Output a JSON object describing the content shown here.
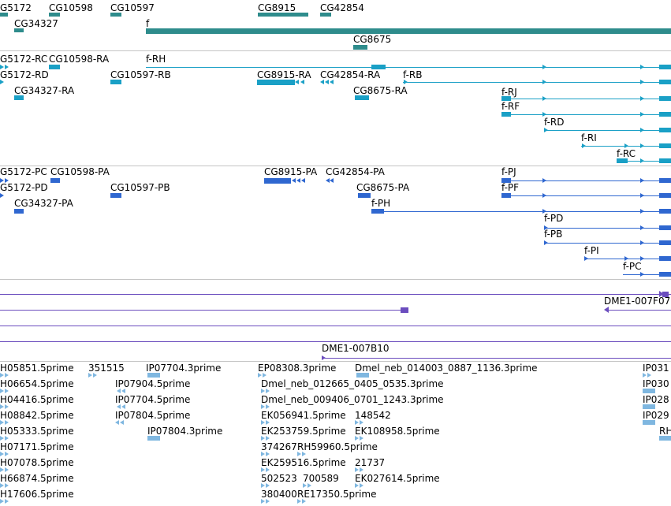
{
  "colors": {
    "gene": "#2e8c8c",
    "transcript": "#1aa0c6",
    "protein": "#2f67d0",
    "clone": "#6b4dbe",
    "insertion": "#7fb7e0",
    "separator": "#c4c4c4"
  },
  "tracks": {
    "genes": [
      {
        "label": "G5172"
      },
      {
        "label": "CG10598"
      },
      {
        "label": "CG10597"
      },
      {
        "label": "CG8915"
      },
      {
        "label": "CG42854"
      },
      {
        "label": "CG34327"
      },
      {
        "label": "f"
      },
      {
        "label": "CG8675"
      }
    ],
    "transcripts": [
      {
        "label": "G5172-RC"
      },
      {
        "label": "CG10598-RA"
      },
      {
        "label": "f-RH"
      },
      {
        "label": "G5172-RD"
      },
      {
        "label": "CG10597-RB"
      },
      {
        "label": "CG8915-RA"
      },
      {
        "label": "CG42854-RA"
      },
      {
        "label": "f-RB"
      },
      {
        "label": "CG34327-RA"
      },
      {
        "label": "CG8675-RA"
      },
      {
        "label": "f-RJ"
      },
      {
        "label": "f-RF"
      },
      {
        "label": "f-RD"
      },
      {
        "label": "f-RI"
      },
      {
        "label": "f-RC"
      }
    ],
    "proteins": [
      {
        "label": "G5172-PC"
      },
      {
        "label": "CG10598-PA"
      },
      {
        "label": "CG8915-PA"
      },
      {
        "label": "CG42854-PA"
      },
      {
        "label": "f-PJ"
      },
      {
        "label": "G5172-PD"
      },
      {
        "label": "CG10597-PB"
      },
      {
        "label": "CG8675-PA"
      },
      {
        "label": "f-PF"
      },
      {
        "label": "CG34327-PA"
      },
      {
        "label": "f-PH"
      },
      {
        "label": "f-PD"
      },
      {
        "label": "f-PB"
      },
      {
        "label": "f-PI"
      },
      {
        "label": "f-PC"
      }
    ],
    "clones": [
      {
        "label": "DME1-007F07"
      },
      {
        "label": "DME1-007B10"
      }
    ],
    "insertions": [
      {
        "label": "H05851.5prime"
      },
      {
        "label": "351515"
      },
      {
        "label": "IP07704.3prime"
      },
      {
        "label": "EP08308.3prime"
      },
      {
        "label": "Dmel_neb_014003_0887_1136.3prime"
      },
      {
        "label": "IP031"
      },
      {
        "label": "H06654.5prime"
      },
      {
        "label": "IP07904.5prime"
      },
      {
        "label": "Dmel_neb_012665_0405_0535.3prime"
      },
      {
        "label": "IP030"
      },
      {
        "label": "H04416.5prime"
      },
      {
        "label": "IP07704.5prime"
      },
      {
        "label": "Dmel_neb_009406_0701_1243.3prime"
      },
      {
        "label": "IP028"
      },
      {
        "label": "H08842.5prime"
      },
      {
        "label": "IP07804.5prime"
      },
      {
        "label": "EK056941.5prime"
      },
      {
        "label": "148542"
      },
      {
        "label": "IP029"
      },
      {
        "label": "H05333.5prime"
      },
      {
        "label": "IP07804.3prime"
      },
      {
        "label": "EK253759.5prime"
      },
      {
        "label": "EK108958.5prime"
      },
      {
        "label": "RH"
      },
      {
        "label": "H07171.5prime"
      },
      {
        "label": "374267"
      },
      {
        "label": "RH59960.5prime"
      },
      {
        "label": "H07078.5prime"
      },
      {
        "label": "EK259516.5prime"
      },
      {
        "label": "21737"
      },
      {
        "label": "H66874.5prime"
      },
      {
        "label": "502523"
      },
      {
        "label": "700589"
      },
      {
        "label": "EK027614.5prime"
      },
      {
        "label": "H17606.5prime"
      },
      {
        "label": "380400"
      },
      {
        "label": "RE17350.5prime"
      }
    ]
  }
}
